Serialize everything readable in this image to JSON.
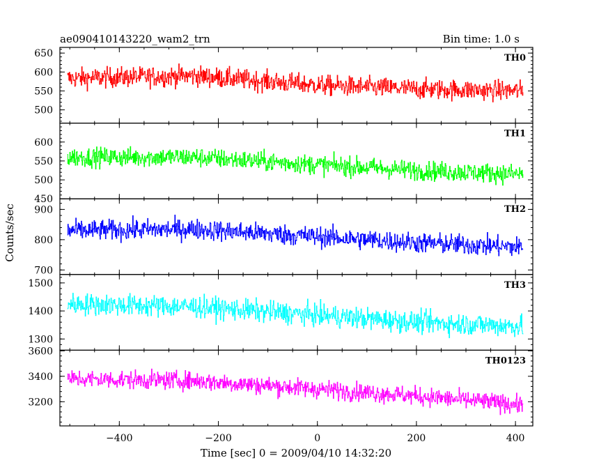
{
  "header": {
    "left_title": "ae090410143220_wam2_trn",
    "right_title": "Bin time: 1.0 s"
  },
  "chart_data": {
    "type": "line",
    "xlabel": "Time [sec] 0 = 2009/04/10 14:32:20",
    "ylabel": "Counts/sec",
    "xlim": [
      -520,
      435
    ],
    "x_ticks": [
      -400,
      -200,
      0,
      200,
      400
    ],
    "x_tick_labels": [
      "−400",
      "−200",
      "0",
      "200",
      "400"
    ],
    "x_range": [
      -505,
      415
    ],
    "bin_time": 1.0,
    "grid": false,
    "panels": [
      {
        "name": "TH0",
        "color": "#ff0000",
        "ylim": [
          465,
          665
        ],
        "y_ticks": [
          500,
          550,
          600,
          650
        ],
        "trend": [
          [
            -505,
            583
          ],
          [
            -250,
            590
          ],
          [
            0,
            565
          ],
          [
            200,
            555
          ],
          [
            415,
            550
          ]
        ],
        "noise": 26
      },
      {
        "name": "TH1",
        "color": "#00ff00",
        "ylim": [
          450,
          650
        ],
        "y_ticks": [
          450,
          500,
          550,
          600
        ],
        "trend": [
          [
            -505,
            560
          ],
          [
            -250,
            560
          ],
          [
            0,
            540
          ],
          [
            200,
            525
          ],
          [
            415,
            515
          ]
        ],
        "noise": 25
      },
      {
        "name": "TH2",
        "color": "#0000ff",
        "ylim": [
          685,
          935
        ],
        "y_ticks": [
          700,
          800,
          900
        ],
        "trend": [
          [
            -505,
            830
          ],
          [
            -250,
            835
          ],
          [
            0,
            810
          ],
          [
            200,
            790
          ],
          [
            415,
            775
          ]
        ],
        "noise": 33
      },
      {
        "name": "TH3",
        "color": "#00ffff",
        "ylim": [
          1260,
          1530
        ],
        "y_ticks": [
          1300,
          1400,
          1500
        ],
        "trend": [
          [
            -505,
            1425
          ],
          [
            -250,
            1415
          ],
          [
            0,
            1385
          ],
          [
            200,
            1360
          ],
          [
            415,
            1345
          ]
        ],
        "noise": 38
      },
      {
        "name": "TH0123",
        "color": "#ff00ff",
        "ylim": [
          3010,
          3605
        ],
        "y_ticks": [
          3200,
          3400,
          3600
        ],
        "trend": [
          [
            -505,
            3380
          ],
          [
            -250,
            3365
          ],
          [
            0,
            3300
          ],
          [
            200,
            3245
          ],
          [
            415,
            3175
          ]
        ],
        "noise": 70
      }
    ]
  }
}
